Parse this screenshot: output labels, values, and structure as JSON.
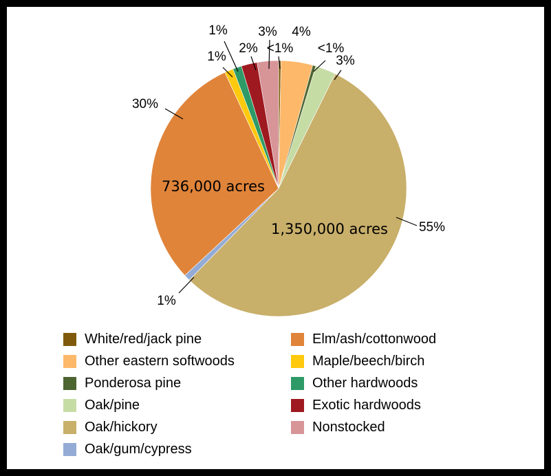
{
  "chart_data": {
    "type": "pie",
    "slices": [
      {
        "name": "White/red/jack pine",
        "value": 0.3,
        "label": "<1%",
        "color": "#7f5a0c"
      },
      {
        "name": "Other eastern softwoods",
        "value": 4,
        "label": "4%",
        "color": "#fdb86a"
      },
      {
        "name": "Ponderosa pine",
        "value": 0.4,
        "label": "<1%",
        "color": "#4d6530"
      },
      {
        "name": "Oak/pine",
        "value": 2.6,
        "label": "3%",
        "color": "#c6dca5"
      },
      {
        "name": "Oak/hickory",
        "value": 55,
        "label": "55%",
        "color": "#c8af6a",
        "annotation": "1,350,000 acres"
      },
      {
        "name": "Oak/gum/cypress",
        "value": 0.8,
        "label": "1%",
        "color": "#94acd5"
      },
      {
        "name": "Elm/ash/cottonwood",
        "value": 30,
        "label": "30%",
        "color": "#e0843a",
        "annotation": "736,000 acres"
      },
      {
        "name": "Maple/beech/birch",
        "value": 1.1,
        "label": "1%",
        "color": "#ffc90e"
      },
      {
        "name": "Other hardwoods",
        "value": 1.1,
        "label": "1%",
        "color": "#2e9a67"
      },
      {
        "name": "Exotic hardwoods",
        "value": 2.0,
        "label": "2%",
        "color": "#9e1a20"
      },
      {
        "name": "Nonstocked",
        "value": 2.7,
        "label": "3%",
        "color": "#d79598"
      }
    ],
    "legend": {
      "placement": "bottom",
      "columns": [
        [
          "White/red/jack pine",
          "Other eastern softwoods",
          "Ponderosa pine",
          "Oak/pine",
          "Oak/hickory",
          "Oak/gum/cypress"
        ],
        [
          "Elm/ash/cottonwood",
          "Maple/beech/birch",
          "Other hardwoods",
          "Exotic hardwoods",
          "Nonstocked"
        ]
      ]
    }
  }
}
